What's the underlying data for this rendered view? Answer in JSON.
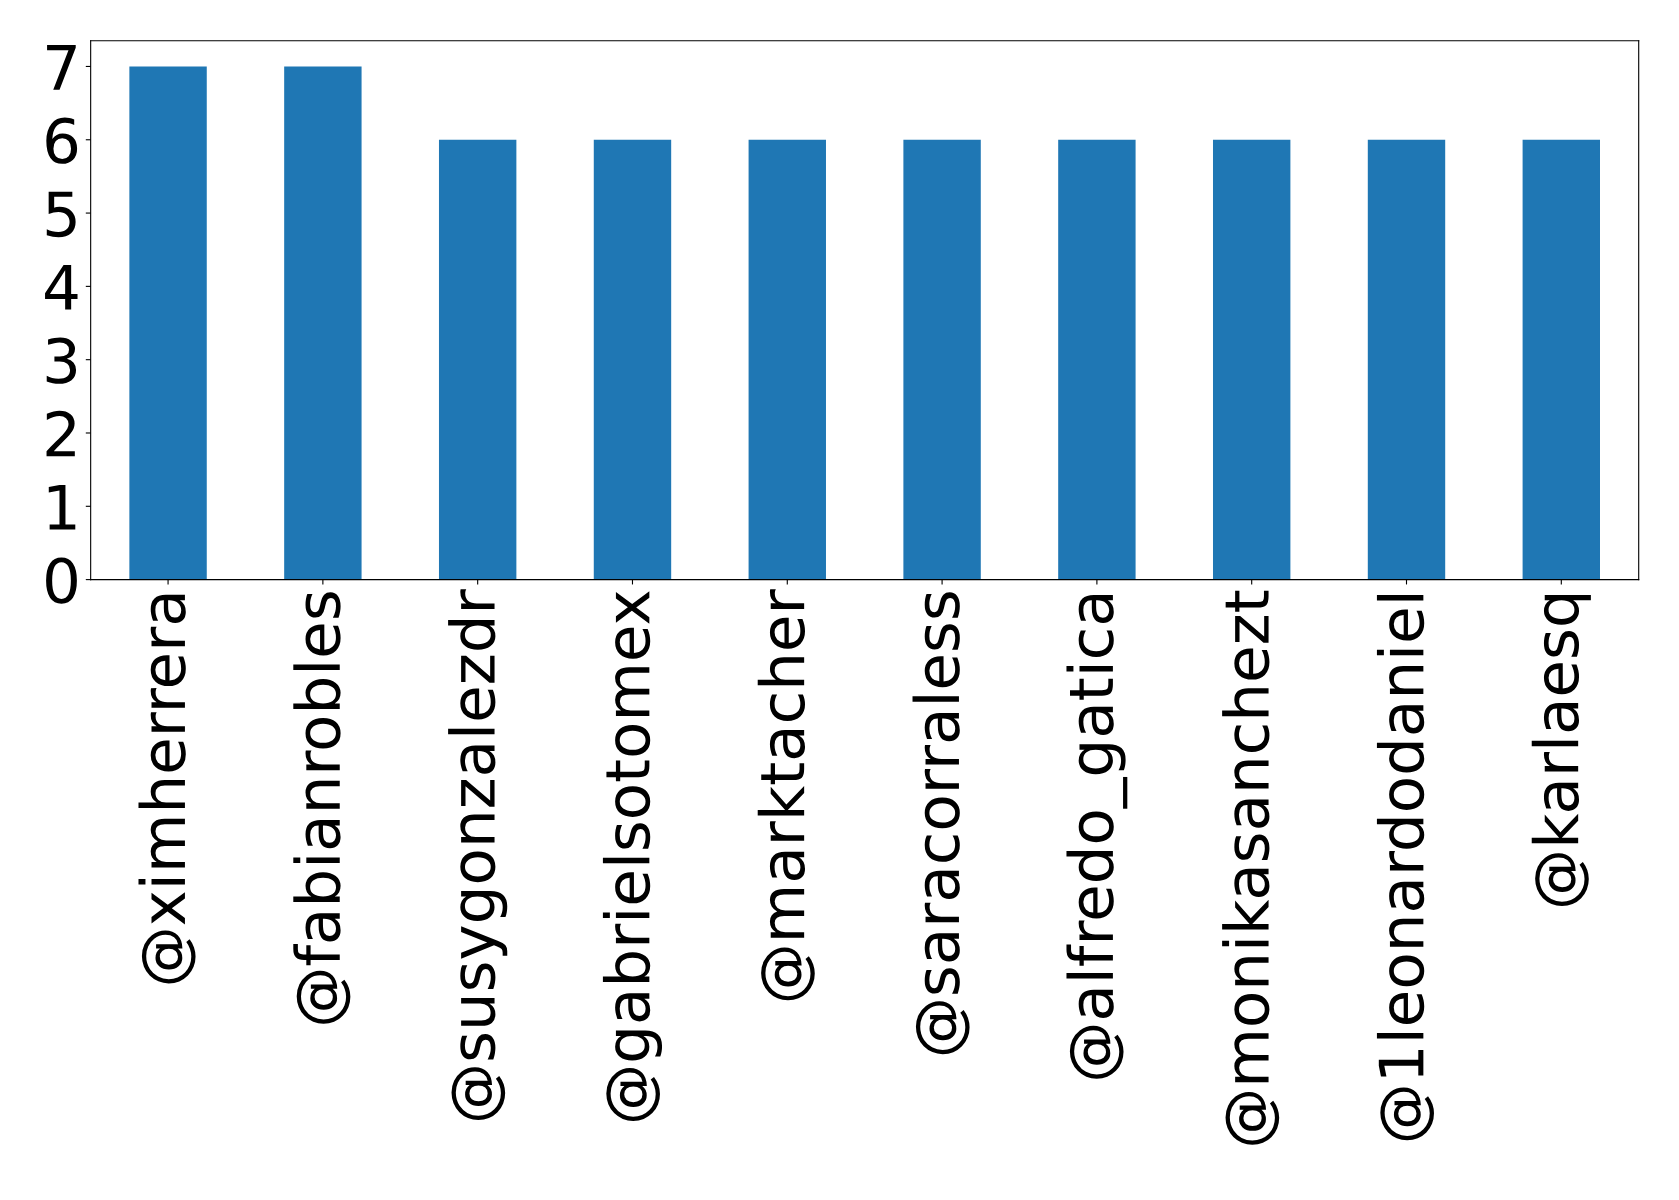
{
  "chart_data": {
    "type": "bar",
    "categories": [
      "@ximherrera",
      "@fabianrobles",
      "@susygonzalezdr",
      "@gabrielsotomex",
      "@marktacher",
      "@saracorraless",
      "@alfredo_gatica",
      "@monikasanchezt",
      "@1leonardodaniel",
      "@karlaesq"
    ],
    "values": [
      7,
      7,
      6,
      6,
      6,
      6,
      6,
      6,
      6,
      6
    ],
    "color": "#1f77b4",
    "ylim": [
      0,
      7.35
    ],
    "yticks": [
      0,
      1,
      2,
      3,
      4,
      5,
      6,
      7
    ],
    "grid": false,
    "legend": false
  }
}
